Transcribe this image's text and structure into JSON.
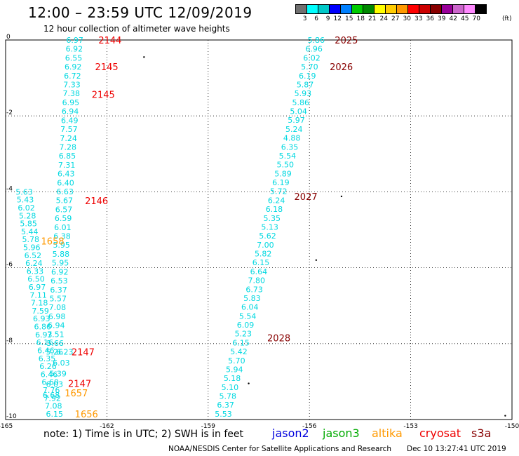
{
  "header": {
    "title": "12:00 – 23:59 UTC 12/09/2019",
    "subtitle": "12 hour collection of altimeter wave heights"
  },
  "colorbar": {
    "colors": [
      "#707070",
      "#00ffff",
      "#00c8c8",
      "#0000ff",
      "#0080ff",
      "#00cc00",
      "#008800",
      "#ffff00",
      "#ffcc00",
      "#ff9900",
      "#ff0000",
      "#cc0000",
      "#880000",
      "#990099",
      "#cc66cc",
      "#ff88ff",
      "#000000"
    ],
    "labels": [
      "3",
      "6",
      "9",
      "12",
      "15",
      "18",
      "21",
      "24",
      "27",
      "30",
      "33",
      "36",
      "39",
      "42",
      "45",
      "70"
    ],
    "unit": "(ft)"
  },
  "footer": {
    "note": "note:  1) Time is in UTC;  2) SWH is in feet",
    "satellites": [
      {
        "name": "jason2",
        "color": "#0000dd"
      },
      {
        "name": "jason3",
        "color": "#00aa00"
      },
      {
        "name": "altika",
        "color": "#ff9900"
      },
      {
        "name": "cryosat",
        "color": "#ee0000"
      },
      {
        "name": "s3a",
        "color": "#880000"
      }
    ],
    "credit": "NOAA/NESDIS Center for Satellite Applications and Research",
    "timestamp": "Dec 10 13:27:41 UTC 2019"
  },
  "chart_data": {
    "type": "scatter",
    "xlim": [
      -165,
      -150
    ],
    "ylim": [
      -10,
      0
    ],
    "x_ticks": [
      -165,
      -162,
      -159,
      -156,
      -153,
      -150
    ],
    "y_ticks": [
      0,
      -2,
      -4,
      -6,
      -8,
      -10
    ],
    "grid": true,
    "grid_style": "dotted",
    "tracks": [
      {
        "satellite": "cryosat",
        "color": "#00d8e0",
        "start_x": -162.95,
        "start_y": 0.0,
        "end_x": -163.55,
        "end_y": -8.22,
        "values": [
          "6.97",
          "6.92",
          "6.55",
          "6.92",
          "6.72",
          "7.33",
          "7.38",
          "6.95",
          "6.94",
          "6.49",
          "7.57",
          "7.24",
          "7.28",
          "6.85",
          "7.31",
          "6.43",
          "6.40",
          "6.63",
          "5.67",
          "6.57",
          "6.59",
          "6.01",
          "6.38",
          "5.95",
          "5.88",
          "5.95",
          "6.92",
          "6.53",
          "6.37",
          "5.57",
          "7.08",
          "6.98",
          "6.94",
          "7.51",
          "5.66",
          "5.26"
        ]
      },
      {
        "satellite": "altika",
        "color": "#00d8e0",
        "start_x": -164.45,
        "start_y": -4.0,
        "end_x": -163.55,
        "end_y": -9.85,
        "values": [
          "5.63",
          "5.43",
          "6.02",
          "5.28",
          "5.85",
          "5.44",
          "5.78",
          "5.96",
          "6.52",
          "6.24",
          "6.33",
          "6.50",
          "6.97",
          "7.11",
          "7.18",
          "7.59",
          "6.93",
          "6.86",
          "6.93",
          "6.16",
          "6.46",
          "6.35",
          "6.26",
          "6.46",
          "6.60",
          "7.76",
          "7.92",
          "7.08",
          "6.15"
        ]
      },
      {
        "satellite": "cryosat",
        "color": "#00d8e0",
        "start_x": -163.25,
        "start_y": -8.22,
        "end_x": -163.65,
        "end_y": -9.35,
        "values": [
          "6.23",
          "6.03",
          "5.39",
          "6.03",
          "6.68"
        ]
      },
      {
        "satellite": "s3a",
        "color": "#00d8e0",
        "start_x": -155.8,
        "start_y": 0.0,
        "end_x": -158.55,
        "end_y": -9.85,
        "values": [
          "5.86",
          "6.96",
          "6.02",
          "5.70",
          "6.19",
          "5.87",
          "5.93",
          "5.86",
          "5.04",
          "5.97",
          "5.24",
          "4.88",
          "6.35",
          "5.54",
          "5.50",
          "5.89",
          "6.19",
          "5.72",
          "6.24",
          "6.18",
          "5.35",
          "5.13",
          "5.62",
          "7.00",
          "5.82",
          "6.15",
          "6.64",
          "7.80",
          "6.73",
          "5.83",
          "6.04",
          "5.54",
          "6.09",
          "5.23",
          "6.15",
          "5.42",
          "5.70",
          "5.94",
          "5.18",
          "5.10",
          "5.78",
          "6.37",
          "5.53"
        ]
      }
    ],
    "time_labels": [
      {
        "text": "2144",
        "x": -162.25,
        "y": 0.0,
        "satellite": "cryosat"
      },
      {
        "text": "2145",
        "x": -162.35,
        "y": -0.7,
        "satellite": "cryosat"
      },
      {
        "text": "2145",
        "x": -162.45,
        "y": -1.43,
        "satellite": "cryosat"
      },
      {
        "text": "2146",
        "x": -162.65,
        "y": -4.23,
        "satellite": "cryosat"
      },
      {
        "text": "2147",
        "x": -163.05,
        "y": -8.22,
        "satellite": "cryosat"
      },
      {
        "text": "2147",
        "x": -163.15,
        "y": -9.05,
        "satellite": "cryosat"
      },
      {
        "text": "1658",
        "x": -163.95,
        "y": -5.3,
        "satellite": "altika"
      },
      {
        "text": "1657",
        "x": -163.25,
        "y": -9.3,
        "satellite": "altika"
      },
      {
        "text": "1656",
        "x": -162.95,
        "y": -9.85,
        "satellite": "altika"
      },
      {
        "text": "2025",
        "x": -155.25,
        "y": 0.0,
        "satellite": "s3a"
      },
      {
        "text": "2026",
        "x": -155.4,
        "y": -0.7,
        "satellite": "s3a"
      },
      {
        "text": "2027",
        "x": -156.45,
        "y": -4.12,
        "satellite": "s3a"
      },
      {
        "text": "2028",
        "x": -157.25,
        "y": -7.85,
        "satellite": "s3a"
      }
    ]
  }
}
